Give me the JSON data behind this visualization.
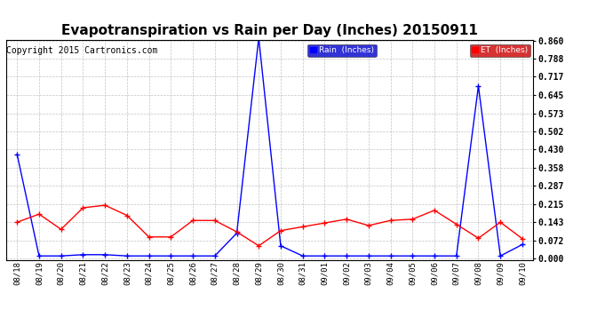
{
  "title": "Evapotranspiration vs Rain per Day (Inches) 20150911",
  "copyright": "Copyright 2015 Cartronics.com",
  "x_labels": [
    "08/18",
    "08/19",
    "08/20",
    "08/21",
    "08/22",
    "08/23",
    "08/24",
    "08/25",
    "08/26",
    "08/27",
    "08/28",
    "08/29",
    "08/30",
    "08/31",
    "09/01",
    "09/02",
    "09/03",
    "09/04",
    "09/05",
    "09/06",
    "09/07",
    "09/08",
    "09/09",
    "09/10"
  ],
  "rain_inches": [
    0.41,
    0.01,
    0.01,
    0.015,
    0.015,
    0.01,
    0.01,
    0.01,
    0.01,
    0.01,
    0.1,
    0.87,
    0.05,
    0.01,
    0.01,
    0.01,
    0.01,
    0.01,
    0.01,
    0.01,
    0.01,
    0.68,
    0.01,
    0.055
  ],
  "et_inches": [
    0.143,
    0.175,
    0.115,
    0.2,
    0.21,
    0.17,
    0.085,
    0.085,
    0.15,
    0.15,
    0.105,
    0.05,
    0.11,
    0.125,
    0.14,
    0.155,
    0.13,
    0.15,
    0.155,
    0.19,
    0.135,
    0.08,
    0.143,
    0.078
  ],
  "rain_color": "#0000ff",
  "et_color": "#ff0000",
  "background_color": "#ffffff",
  "grid_color": "#aaaaaa",
  "yticks": [
    0.0,
    0.072,
    0.143,
    0.215,
    0.287,
    0.358,
    0.43,
    0.502,
    0.573,
    0.645,
    0.717,
    0.788,
    0.86
  ],
  "title_fontsize": 11,
  "copyright_fontsize": 7,
  "legend_rain_label": "Rain  (Inches)",
  "legend_et_label": "ET  (Inches)",
  "ylim": [
    0.0,
    0.86
  ],
  "rain_legend_bg": "#0000cc",
  "et_legend_bg": "#cc0000"
}
